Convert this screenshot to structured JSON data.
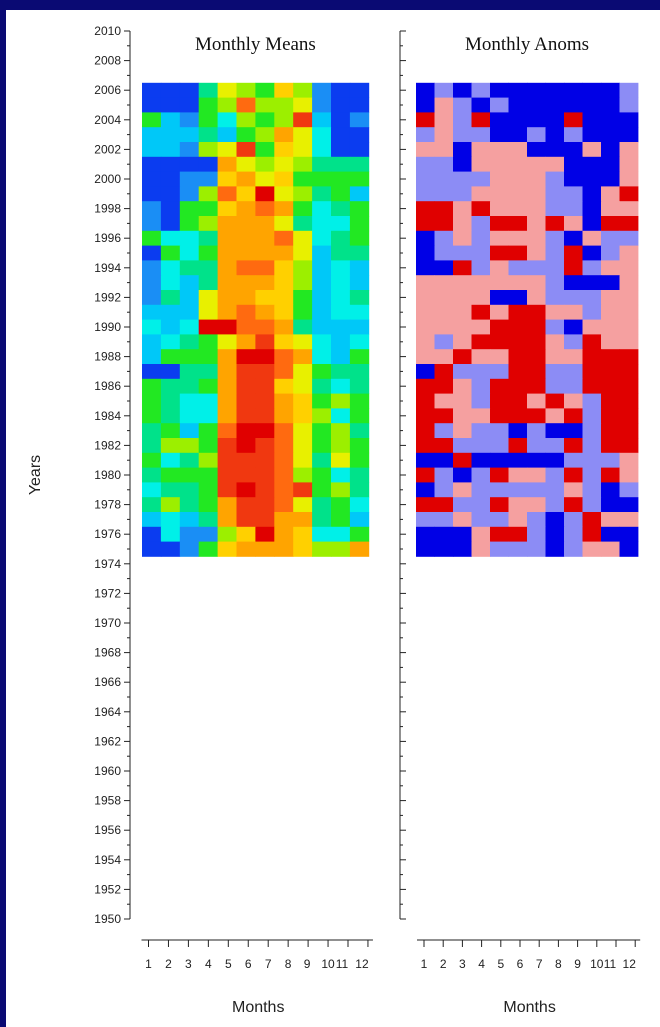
{
  "chart_data": {
    "type": "heatmap",
    "ylabel": "Years",
    "y_ticks": [
      "2010",
      "2008",
      "2006",
      "2004",
      "2002",
      "2000",
      "1998",
      "1996",
      "1994",
      "1992",
      "1990",
      "1988",
      "1986",
      "1984",
      "1982",
      "1980",
      "1978",
      "1976",
      "1974",
      "1972",
      "1970",
      "1968",
      "1966",
      "1964",
      "1962",
      "1960",
      "1958",
      "1956",
      "1954",
      "1952",
      "1950"
    ],
    "ylim": [
      1950,
      2010
    ],
    "data_years": [
      1975,
      2006
    ],
    "panels": [
      {
        "title": "Monthly Means",
        "xlabel": "Months",
        "x_ticks": [
          "1",
          "2",
          "3",
          "4",
          "5",
          "6",
          "7",
          "8",
          "9",
          "10",
          "11",
          "12"
        ],
        "palette": {
          "A": "#0b3cf0",
          "B": "#1a8ef5",
          "C": "#00c8f8",
          "D": "#00f0e8",
          "E": "#00e28a",
          "F": "#22e822",
          "G": "#9cef00",
          "H": "#e8f000",
          "I": "#ffd000",
          "J": "#ffa400",
          "K": "#ff6a10",
          "L": "#f03810",
          "M": "#e00000"
        },
        "rows": [
          "AAAEHGFIGBAA",
          "AAAFGKGGHBAA",
          "FCBFDGFGLCAB",
          "CCCECFGJHDAA",
          "CCBGHLFIHDAA",
          "AAAAJHGHGEEE",
          "AABBIJHIFFFF",
          "AABGKIMHGEFC",
          "BAFFIJKJFDEF",
          "BAFGJJJHEDDF",
          "FDDEJJJKHDEF",
          "AFDFJJJJHCEE",
          "BDEEJKKIGCDC",
          "BDCEJJJIGCDC",
          "BECHJJIIFCDE",
          "CCCHJKJIFCDD",
          "DCDMMKKJECCC",
          "CDEFHJLIHDCD",
          "CFFFJMMKJDCF",
          "AAEEJLLKHFEE",
          "FEEFJLLIHEDE",
          "FEDDJLLJIFGF",
          "FEDDJLLJIGDF",
          "EFCFKMMKHFGE",
          "EGGFLMLKHFGF",
          "FDEGLLLKHEHF",
          "EFFFLLLKGFDE",
          "DEEFLMLKLFGE",
          "EGEFJLLKHEFD",
          "CDCEJLLJJEFC",
          "ADBBGIMJIDDF",
          "AABFIJJJIGGJ"
        ]
      },
      {
        "title": "Monthly Anoms",
        "xlabel": "Months",
        "x_ticks": [
          "1",
          "2",
          "3",
          "4",
          "5",
          "6",
          "7",
          "8",
          "9",
          "10",
          "11",
          "12"
        ],
        "palette": {
          "A": "#0000e6",
          "B": "#8c8cf5",
          "C": "#f5a0a0",
          "D": "#e00000"
        },
        "rows": [
          "ABABAAAAAAAB",
          "ACBABAAAAAAB",
          "DCBDAAAADAAA",
          "BCBBAABABAAA",
          "CCACCCAAACAC",
          "BBACCCCCAAAC",
          "BBBBCCCBAAAC",
          "BBBCCCCBBACD",
          "DDCDCCCBBACC",
          "DDCBDDCDCADD",
          "ABCBCCCBACBB",
          "ABBBDDCBDABC",
          "AADBCBBBDBCC",
          "CCCCCCCBAAAC",
          "CCCCAACBBBCC",
          "CCCDCDDCCBCC",
          "CCCCDDDBACCC",
          "CBCDDDDCBDCC",
          "CCDCCDDCCDDD",
          "ADBBBDDBBDDD",
          "DDCBDDDBBDDD",
          "DCCBDDCDCBDD",
          "DDCCDDDCDBDD",
          "DBCBBABAABDD",
          "DDBBBDBBDBDD",
          "AADAAAAABBBC",
          "DBABDCCBDBDC",
          "ABCBBBBBCBAB",
          "DDBBDCCBDBAA",
          "BBCBBCBABDCC",
          "AAACDDBABDAA",
          "AAACBBBABCCA"
        ]
      }
    ]
  }
}
